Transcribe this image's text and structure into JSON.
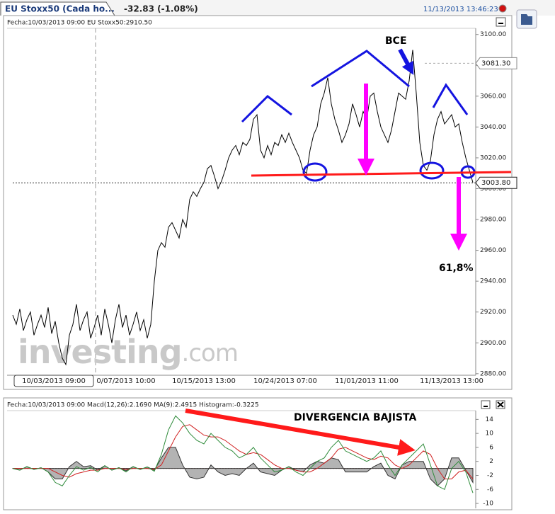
{
  "header": {
    "tab": "EU Stoxx50 (Cada ho...",
    "change": "-32.83 (-1.08%)",
    "timestamp": "11/13/2013 13:46:23"
  },
  "chart_data": [
    {
      "type": "line",
      "info": "Fecha:10/03/2013 09:00 EU Stoxx50:2910.50",
      "color": "#000000",
      "categories": [
        null,
        null,
        null,
        null,
        null,
        null,
        null,
        null,
        null,
        null,
        null,
        null,
        null,
        null,
        null,
        null,
        null,
        null,
        null,
        null,
        null,
        null,
        null,
        null,
        null,
        null,
        null,
        null,
        null,
        null,
        null,
        null,
        "0/07/2013 10:00",
        null,
        null,
        null,
        null,
        null,
        null,
        null,
        null,
        null,
        null,
        null,
        null,
        null,
        null,
        null,
        null,
        null,
        null,
        null,
        null,
        null,
        "10/15/2013 13:00",
        null,
        null,
        null,
        null,
        null,
        null,
        null,
        null,
        null,
        null,
        null,
        null,
        null,
        null,
        null,
        null,
        null,
        null,
        null,
        null,
        null,
        null,
        "10/24/2013 07:00",
        null,
        null,
        null,
        null,
        null,
        null,
        null,
        null,
        null,
        null,
        null,
        null,
        null,
        null,
        null,
        null,
        null,
        null,
        null,
        null,
        null,
        null,
        "11/01/2013 11:00",
        null,
        null,
        null,
        null,
        null,
        null,
        null,
        null,
        null,
        null,
        null,
        null,
        null,
        null,
        null,
        null,
        null,
        null,
        null,
        null,
        null,
        null,
        null,
        "11/13/2013 13:00",
        null,
        null,
        null,
        null,
        null,
        null
      ],
      "values": [
        2918,
        2912,
        2922,
        2908,
        2915,
        2920,
        2905,
        2912,
        2918,
        2910,
        2923,
        2906,
        2914,
        2900,
        2890,
        2886,
        2905,
        2912,
        2925,
        2908,
        2915,
        2920,
        2903,
        2910,
        2918,
        2905,
        2922,
        2912,
        2900,
        2915,
        2925,
        2910,
        2918,
        2905,
        2912,
        2920,
        2908,
        2915,
        2903,
        2912,
        2940,
        2960,
        2965,
        2962,
        2975,
        2978,
        2973,
        2968,
        2980,
        2975,
        2993,
        2998,
        2995,
        3000,
        3004,
        3013,
        3015,
        3008,
        3000,
        3005,
        3012,
        3020,
        3025,
        3028,
        3022,
        3030,
        3028,
        3032,
        3045,
        3048,
        3025,
        3020,
        3028,
        3022,
        3030,
        3028,
        3035,
        3030,
        3036,
        3030,
        3025,
        3020,
        3012,
        3010,
        3025,
        3035,
        3040,
        3055,
        3062,
        3072,
        3055,
        3045,
        3038,
        3030,
        3035,
        3042,
        3055,
        3048,
        3040,
        3050,
        3045,
        3060,
        3062,
        3050,
        3040,
        3035,
        3030,
        3038,
        3050,
        3062,
        3060,
        3058,
        3070,
        3090,
        3062,
        3030,
        3015,
        3012,
        3018,
        3035,
        3045,
        3050,
        3042,
        3045,
        3048,
        3040,
        3042,
        3030,
        3020,
        3012,
        3004
      ],
      "ylim": [
        2879,
        3104
      ],
      "yticks": [
        {
          "value": 2880,
          "label": "2880.00"
        },
        {
          "value": 2900,
          "label": "2900.00"
        },
        {
          "value": 2920,
          "label": "2920.00"
        },
        {
          "value": 2940,
          "label": "2940.00"
        },
        {
          "value": 2960,
          "label": "2960.00"
        },
        {
          "value": 2980,
          "label": "2980.00"
        },
        {
          "value": 3000,
          "label": "3000.00"
        },
        {
          "value": 3020,
          "label": "3020.00"
        },
        {
          "value": 3040,
          "label": "3040.00"
        },
        {
          "value": 3060,
          "label": "3060.00"
        },
        {
          "value": 3080,
          "label": "3080.00"
        },
        {
          "value": 3100,
          "label": "3100.00"
        }
      ],
      "markers": [
        {
          "value": 3081.3,
          "label": "3081.30"
        },
        {
          "value": 3003.8,
          "label": "3003.80"
        }
      ],
      "crosshair_label": "10/03/2013 09:00",
      "annotations": [
        "BCE",
        "61,8%"
      ],
      "watermark": [
        "investing",
        ".com"
      ]
    },
    {
      "type": "macd",
      "info": "Fecha:10/03/2013 09:00 Macd(12,26):2.1690 MA(9):2.4915 Histogram:-0.3225",
      "series": [
        {
          "color": "#2e8b3a",
          "values": [
            0,
            -0.5,
            0.5,
            -0.3,
            0.2,
            -1,
            -4,
            -5,
            -2,
            0.5,
            -0.5,
            0.3,
            -1,
            0.8,
            -0.5,
            0.2,
            -1,
            0.5,
            -0.3,
            0.4,
            -0.8,
            4,
            11,
            15,
            13,
            10,
            8,
            7,
            10,
            8,
            6,
            5,
            3,
            4,
            6,
            3,
            1,
            -1,
            -0.5,
            0.5,
            -1,
            -2,
            0,
            2,
            3,
            6,
            8,
            5,
            4,
            3,
            2,
            3,
            5,
            1,
            -2,
            1,
            3,
            5,
            7,
            1,
            -5,
            -6,
            0,
            2,
            -1,
            -7
          ]
        },
        {
          "color": "#d02020",
          "values": [
            0,
            0,
            0,
            0,
            0,
            0,
            -1,
            -2,
            -2.5,
            -1.5,
            -1,
            -0.5,
            -0.5,
            0,
            0,
            0,
            -0.3,
            0,
            0,
            0,
            -0.3,
            1,
            5,
            9,
            12,
            12.5,
            11,
            9.5,
            9,
            9,
            8,
            6.5,
            5,
            4,
            4.5,
            4,
            2.5,
            1,
            0,
            0,
            -0.5,
            -1,
            -1,
            0,
            1.5,
            3,
            5.5,
            6,
            5,
            4,
            3,
            2.5,
            3.5,
            3,
            1,
            0,
            1,
            3,
            5,
            4,
            0,
            -3,
            -3,
            -1,
            -0.5,
            -3
          ]
        },
        {
          "color": "#999999",
          "values": [
            0,
            -0.5,
            0.5,
            -0.3,
            0.2,
            -1,
            -3,
            -3,
            0.5,
            2,
            0.5,
            0.8,
            -0.5,
            0.8,
            -0.5,
            0.2,
            -0.7,
            0.5,
            -0.3,
            0.4,
            -0.5,
            3,
            6,
            6,
            1,
            -2.5,
            -3,
            -2.5,
            1,
            -1,
            -2,
            -1.5,
            -2,
            0,
            1.5,
            -1,
            -1.5,
            -2,
            -0.5,
            0.5,
            -0.5,
            -1,
            1,
            2,
            1.5,
            3,
            2.5,
            -1,
            -1,
            -1,
            -1,
            0.5,
            1.5,
            -2,
            -3,
            1,
            2,
            2,
            2,
            -3,
            -5,
            -3,
            3,
            3,
            -0.5,
            -4
          ]
        }
      ],
      "ylim": [
        -11.4,
        16.5
      ],
      "yticks": [
        14,
        10,
        6,
        2,
        -2,
        -6,
        -10
      ],
      "annotations": [
        "DIVERGENCIA BAJISTA"
      ]
    }
  ]
}
